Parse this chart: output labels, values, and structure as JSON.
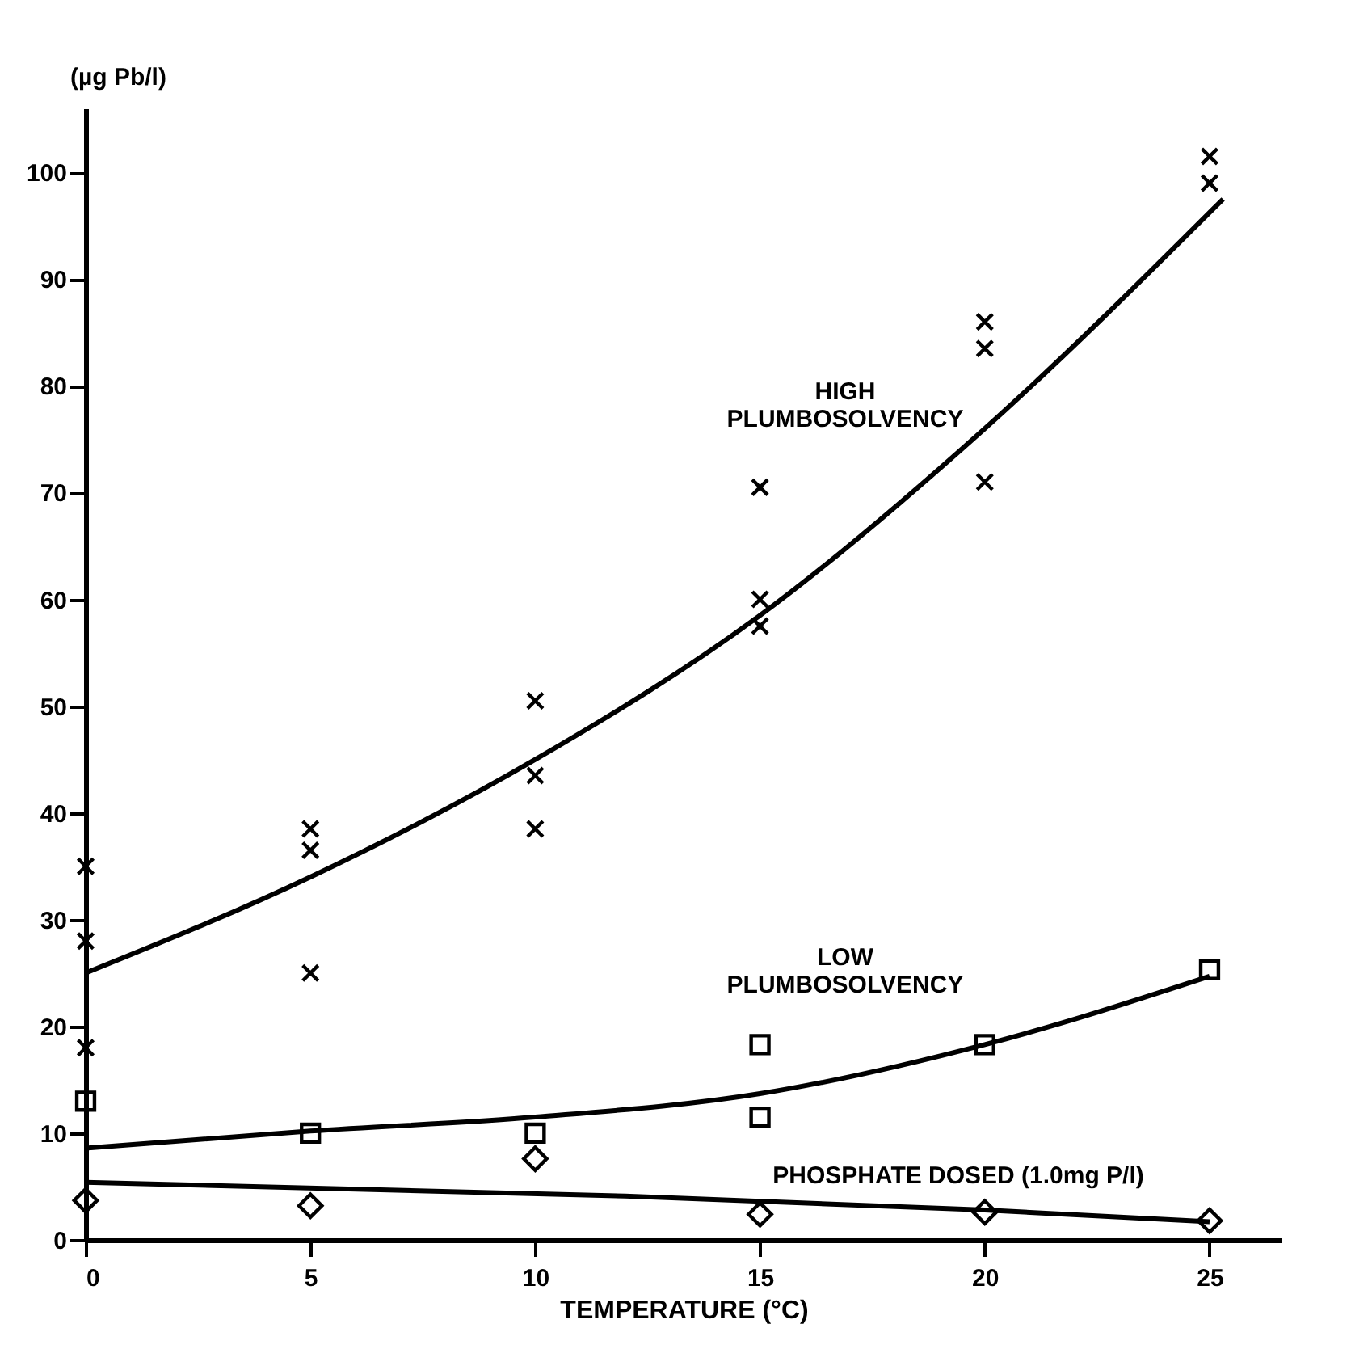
{
  "chart_data": {
    "type": "scatter",
    "xlabel": "TEMPERATURE (°C)",
    "ylabel": "(µg Pb/l)",
    "xlim": [
      0,
      26.6
    ],
    "ylim": [
      0,
      106
    ],
    "xticks": [
      0,
      5,
      10,
      15,
      20,
      25
    ],
    "yticks": [
      0,
      10,
      20,
      30,
      40,
      50,
      60,
      70,
      80,
      90,
      100
    ],
    "grid": false,
    "series": [
      {
        "marker": "cross",
        "color": "#000000",
        "x": [
          0,
          0,
          0,
          5,
          5,
          5,
          10,
          10,
          10,
          15,
          15,
          15,
          20,
          20,
          20,
          25,
          25
        ],
        "values": [
          35,
          28,
          18,
          38.5,
          36.5,
          25,
          50.5,
          43.5,
          38.5,
          70.5,
          60,
          57.5,
          86,
          83.5,
          71,
          101.5,
          99
        ]
      },
      {
        "type": "line",
        "line_style": "solid",
        "color": "#000000",
        "x": [
          0,
          5,
          10,
          15,
          20,
          25.3
        ],
        "values": [
          25,
          34,
          45,
          58.5,
          76,
          97.5
        ]
      },
      {
        "marker": "square",
        "color": "#000000",
        "x": [
          0,
          5,
          10,
          15,
          15,
          20,
          25
        ],
        "values": [
          13,
          10,
          10,
          18.3,
          11.5,
          18.3,
          25.3
        ]
      },
      {
        "type": "line",
        "line_style": "solid",
        "color": "#000000",
        "x": [
          0,
          5,
          10,
          15,
          20,
          25
        ],
        "values": [
          8.6,
          10.2,
          11.5,
          13.7,
          18.3,
          24.7
        ]
      },
      {
        "marker": "diamond",
        "color": "#000000",
        "x": [
          0,
          5,
          10,
          15,
          20,
          25
        ],
        "values": [
          3.7,
          3.2,
          7.6,
          2.4,
          2.6,
          1.8
        ]
      },
      {
        "type": "line",
        "line_style": "solid",
        "color": "#000000",
        "x": [
          0,
          12,
          20,
          25
        ],
        "values": [
          5.4,
          4.1,
          2.8,
          1.7
        ]
      }
    ],
    "annotations": [
      "HIGH PLUMBOSOLVENCY",
      "LOW PLUMBOSOLVENCY",
      "PHOSPHATE DOSED (1.0mg P/l)"
    ]
  }
}
